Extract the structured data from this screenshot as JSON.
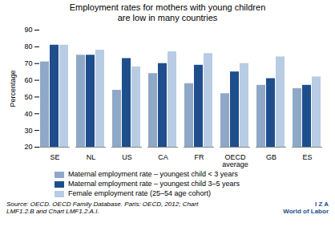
{
  "chart_data": {
    "type": "bar",
    "title": "Employment rates for mothers with young children",
    "subtitle": "are low in many countries",
    "categories": [
      "SE",
      "NL",
      "US",
      "CA",
      "FR",
      "OECD\naverage",
      "GB",
      "ES"
    ],
    "series": [
      {
        "name": "Maternal employment rate – youngest child < 3 years",
        "color": "#8fa8c8",
        "values": [
          71,
          75,
          54,
          64,
          58,
          52,
          57,
          55
        ]
      },
      {
        "name": "Maternal employment rate – youngest child 3–5 years",
        "color": "#1f4e8c",
        "values": [
          81,
          75,
          73,
          70,
          69,
          65,
          61,
          57
        ]
      },
      {
        "name": "Female employment rate (25–54 age cohort)",
        "color": "#b8cce4",
        "values": [
          81,
          78,
          68,
          77,
          76,
          70,
          74,
          62
        ]
      }
    ],
    "ylabel": "Percentage",
    "ylim": [
      20,
      90
    ],
    "yticks": [
      20,
      30,
      40,
      50,
      60,
      70,
      80,
      90
    ],
    "grid": false,
    "legend": "bottom",
    "annotations": [
      "Source: OECD. OECD Family Database. Paris: OECD, 2012; Chart\nLMF1.2.B and Chart LMF1.2.A.I.",
      "I Z A",
      "World of Labor"
    ]
  }
}
